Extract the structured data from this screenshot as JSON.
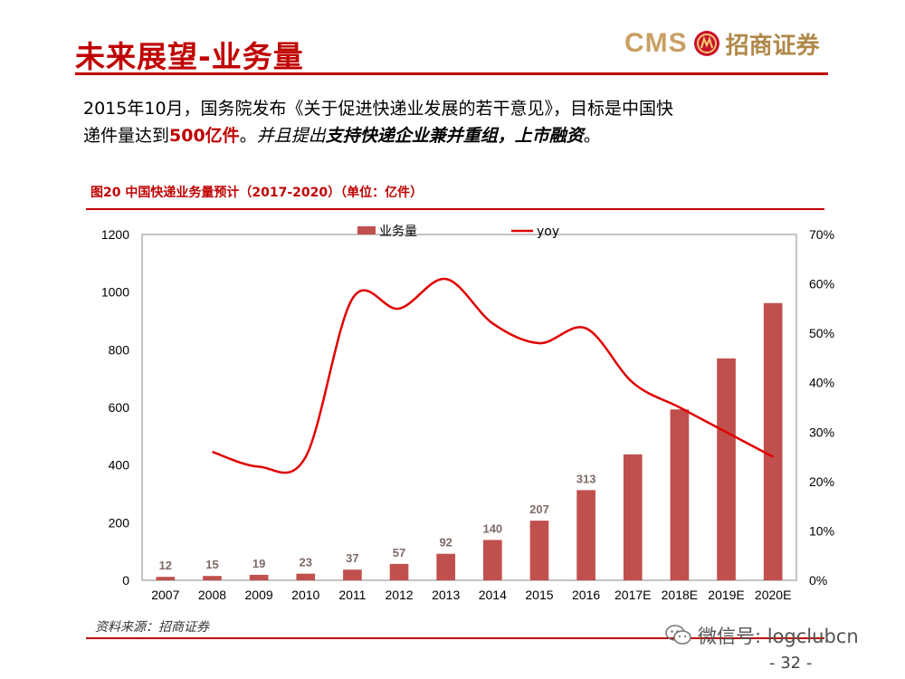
{
  "header": {
    "title": "未来展望-业务量",
    "logo_text": "CMS",
    "logo_cn": "招商证券"
  },
  "intro": {
    "line1": "2015年10月，国务院发布《关于促进快递业发展的若干意见》，目标是中国快",
    "line2_a": "递件量达到",
    "line2_red": "500亿件",
    "line2_b": "。",
    "line2_italic": "并且提出",
    "line2_bold_italic": "支持快递企业兼并重组，上市融资",
    "line2_end": "。"
  },
  "figure": {
    "title": "图20  中国快递业务量预计（2017-2020）（单位：亿件）"
  },
  "chart_data": {
    "type": "bar",
    "categories": [
      "2007",
      "2008",
      "2009",
      "2010",
      "2011",
      "2012",
      "2013",
      "2014",
      "2015",
      "2016",
      "2017E",
      "2018E",
      "2019E",
      "2020E"
    ],
    "series": [
      {
        "name": "业务量",
        "type": "bar",
        "axis": "left",
        "values": [
          12,
          15,
          19,
          23,
          37,
          57,
          92,
          140,
          207,
          313,
          437,
          593,
          770,
          962
        ],
        "data_labels": [
          "12",
          "15",
          "19",
          "23",
          "37",
          "57",
          "92",
          "140",
          "207",
          "313",
          "",
          "",
          "",
          ""
        ],
        "color": "#c0504d"
      },
      {
        "name": "yoy",
        "type": "line",
        "axis": "right",
        "values": [
          null,
          0.26,
          0.23,
          0.25,
          0.57,
          0.55,
          0.61,
          0.52,
          0.48,
          0.51,
          0.4,
          0.35,
          0.3,
          0.25
        ],
        "color": "#e00000"
      }
    ],
    "y_left": {
      "min": 0,
      "max": 1200,
      "ticks": [
        "0",
        "200",
        "400",
        "600",
        "800",
        "1000",
        "1200"
      ]
    },
    "y_right": {
      "min": 0,
      "max": 0.7,
      "ticks": [
        "0%",
        "10%",
        "20%",
        "30%",
        "40%",
        "50%",
        "60%",
        "70%"
      ]
    },
    "legend_position": "top-center",
    "grid": false
  },
  "footer": {
    "source": "资料来源：招商证券",
    "wechat": "微信号: logclubcn",
    "page": "- 32 -"
  }
}
